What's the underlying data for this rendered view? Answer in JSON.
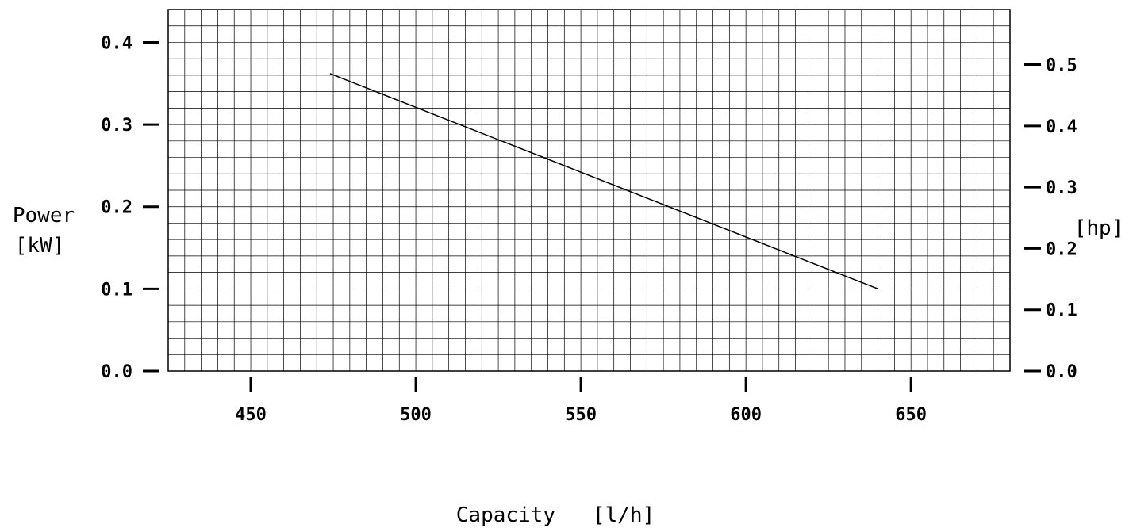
{
  "chart_data": {
    "type": "line",
    "title": "",
    "xlabel": "Capacity   [l/h]",
    "ylabel_left": [
      "Power",
      "[kW]"
    ],
    "ylabel_right": "[hp]",
    "xlim": [
      425,
      680
    ],
    "ylim": [
      0,
      0.44
    ],
    "ylim_right_hp": [
      0,
      0.59
    ],
    "grid": true,
    "x_ticks": [
      "450",
      "500",
      "550",
      "600",
      "650"
    ],
    "y_ticks_left": [
      "0.0",
      "0.1",
      "0.2",
      "0.3",
      "0.4"
    ],
    "y_ticks_right": [
      "0.0",
      "0.1",
      "0.2",
      "0.3",
      "0.4",
      "0.5"
    ],
    "series": [
      {
        "x": [
          474,
          640
        ],
        "y": [
          0.362,
          0.1
        ]
      }
    ]
  }
}
